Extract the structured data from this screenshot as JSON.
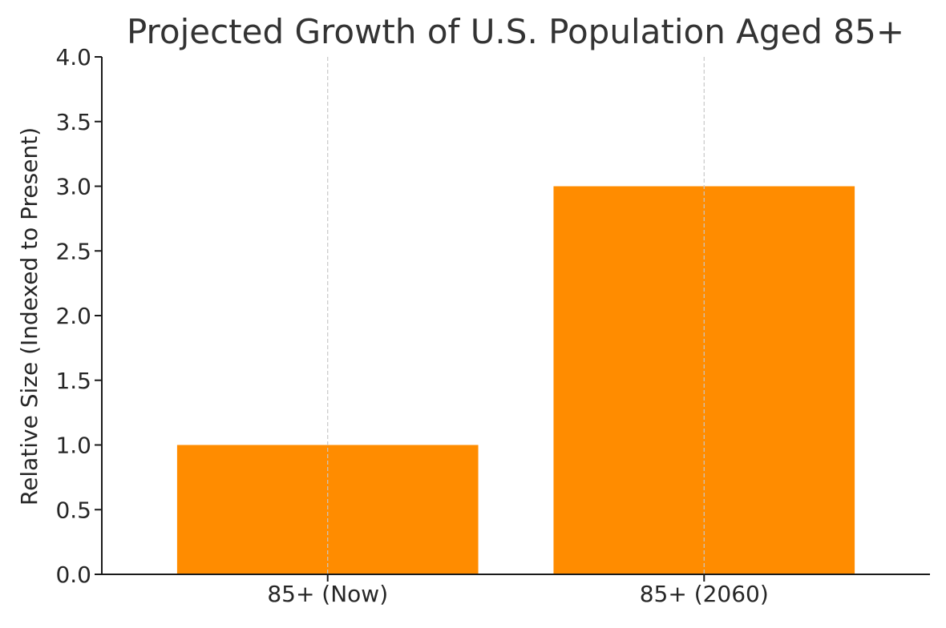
{
  "chart_data": {
    "type": "bar",
    "title": "Projected Growth of U.S. Population Aged 85+",
    "xlabel": "",
    "ylabel": "Relative Size (Indexed to Present)",
    "categories": [
      "85+ (Now)",
      "85+ (2060)"
    ],
    "values": [
      1.0,
      3.0
    ],
    "ylim": [
      0,
      4.0
    ],
    "yticks": [
      "0.0",
      "0.5",
      "1.0",
      "1.5",
      "2.0",
      "2.5",
      "3.0",
      "3.5",
      "4.0"
    ],
    "grid": "vertical dashed at category centers",
    "legend": "none"
  },
  "colors": {
    "bar": "#ff8c00",
    "axis": "#1a1a1a",
    "grid": "#c8c8c8",
    "text": "#262626",
    "title": "#333333"
  }
}
